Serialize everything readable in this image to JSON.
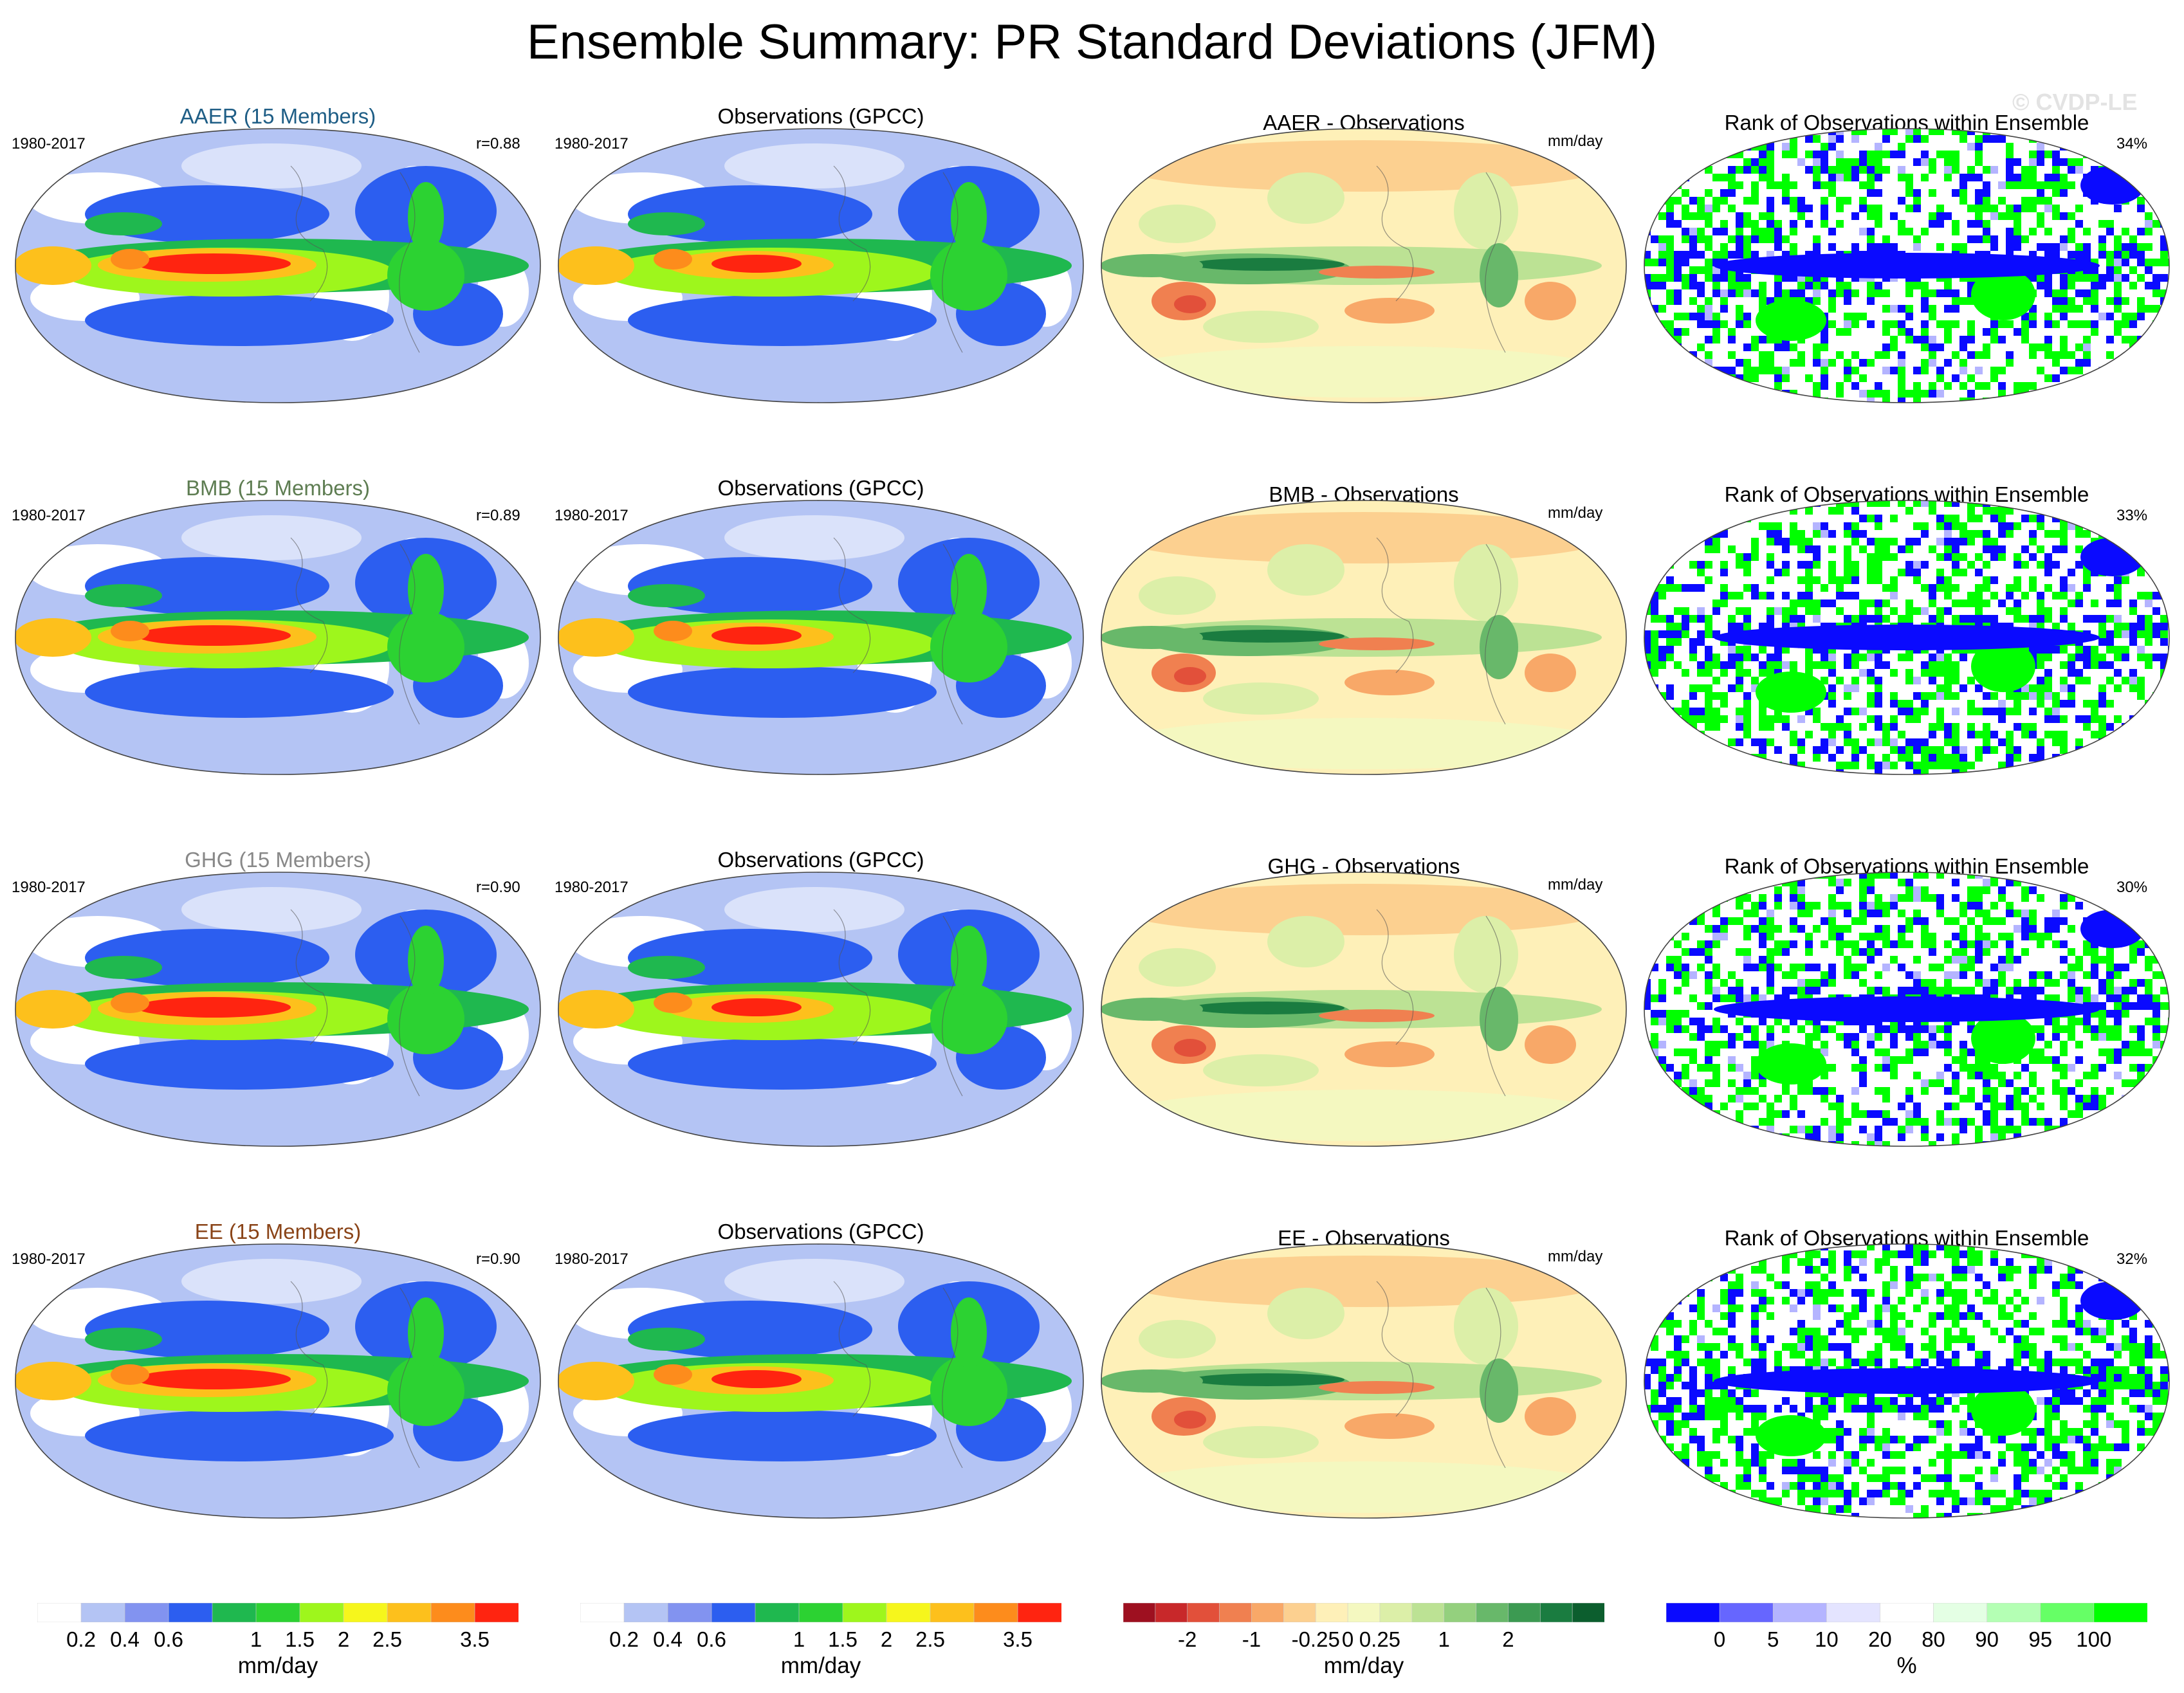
{
  "title": "Ensemble Summary: PR Standard Deviations (JFM)",
  "watermark": "© CVDP-LE",
  "rows": [
    {
      "experiment": "AAER (15 Members)",
      "exp_color": "#1f5e86",
      "years": "1980-2017",
      "r": "r=0.88",
      "obs_title": "Observations (GPCC)",
      "obs_years": "1980-2017",
      "diff_title": "AAER - Observations",
      "diff_unit": "mm/day",
      "rank_title": "Rank of Observations within Ensemble",
      "rank_pct": "34%"
    },
    {
      "experiment": "BMB (15 Members)",
      "exp_color": "#5e7d52",
      "years": "1980-2017",
      "r": "r=0.89",
      "obs_title": "Observations (GPCC)",
      "obs_years": "1980-2017",
      "diff_title": "BMB - Observations",
      "diff_unit": "mm/day",
      "rank_title": "Rank of Observations within Ensemble",
      "rank_pct": "33%"
    },
    {
      "experiment": "GHG (15 Members)",
      "exp_color": "#888888",
      "years": "1980-2017",
      "r": "r=0.90",
      "obs_title": "Observations (GPCC)",
      "obs_years": "1980-2017",
      "diff_title": "GHG - Observations",
      "diff_unit": "mm/day",
      "rank_title": "Rank of Observations within Ensemble",
      "rank_pct": "30%"
    },
    {
      "experiment": "EE (15 Members)",
      "exp_color": "#8a4418",
      "years": "1980-2017",
      "r": "r=0.90",
      "obs_title": "Observations (GPCC)",
      "obs_years": "1980-2017",
      "diff_title": "EE - Observations",
      "diff_unit": "mm/day",
      "rank_title": "Rank of Observations within Ensemble",
      "rank_pct": "32%"
    }
  ],
  "colorbars": {
    "stddev": {
      "colors": [
        "#ffffff",
        "#b4c4f4",
        "#8293f0",
        "#2c5ef0",
        "#1fb84f",
        "#2cd232",
        "#9ef61c",
        "#f6f61c",
        "#fdc01c",
        "#fd8c1c",
        "#ff2410"
      ],
      "labels": [
        "0.2",
        "0.4",
        "0.6",
        "1",
        "1.5",
        "2",
        "2.5",
        "3.5"
      ],
      "unit": "mm/day"
    },
    "diff": {
      "colors": [
        "#9e1020",
        "#c8282a",
        "#e2503a",
        "#f08050",
        "#f8a868",
        "#fcd090",
        "#fef0b8",
        "#f4f8c0",
        "#dcefa8",
        "#bce294",
        "#94d07e",
        "#68b86a",
        "#3c9a52",
        "#1a7c40",
        "#0c5e2e"
      ],
      "labels": [
        "-2",
        "-1",
        "-0.25",
        "0",
        "0.25",
        "1",
        "2"
      ],
      "unit": "mm/day"
    },
    "rank": {
      "colors": [
        "#0a0aff",
        "#6666ff",
        "#b4b4ff",
        "#e4e4ff",
        "#ffffff",
        "#e4ffe4",
        "#b4ffb4",
        "#66ff66",
        "#00ff00"
      ],
      "labels": [
        "0",
        "5",
        "10",
        "20",
        "80",
        "90",
        "95",
        "100"
      ],
      "unit": "%"
    }
  },
  "chart_data": {
    "type": "heatmap",
    "description_panels": [
      {
        "row": "AAER",
        "panels": [
          "AAER ensemble mean std dev",
          "Observations (GPCC)",
          "AAER - Observations",
          "Rank of Observations within Ensemble"
        ],
        "pattern_correlation": 0.88,
        "rank_percent": 34
      },
      {
        "row": "BMB",
        "panels": [
          "BMB ensemble mean std dev",
          "Observations (GPCC)",
          "BMB - Observations",
          "Rank of Observations within Ensemble"
        ],
        "pattern_correlation": 0.89,
        "rank_percent": 33
      },
      {
        "row": "GHG",
        "panels": [
          "GHG ensemble mean std dev",
          "Observations (GPCC)",
          "GHG - Observations",
          "Rank of Observations within Ensemble"
        ],
        "pattern_correlation": 0.9,
        "rank_percent": 30
      },
      {
        "row": "EE",
        "panels": [
          "EE ensemble mean std dev",
          "Observations (GPCC)",
          "EE - Observations",
          "Rank of Observations within Ensemble"
        ],
        "pattern_correlation": 0.9,
        "rank_percent": 32
      }
    ],
    "stddev_levels": [
      0.2,
      0.4,
      0.6,
      1,
      1.5,
      2,
      2.5,
      3.5
    ],
    "diff_levels": [
      -2,
      -1,
      -0.25,
      0,
      0.25,
      1,
      2
    ],
    "rank_levels": [
      0,
      5,
      10,
      20,
      80,
      90,
      95,
      100
    ],
    "projection": "robinson",
    "grid": false
  }
}
